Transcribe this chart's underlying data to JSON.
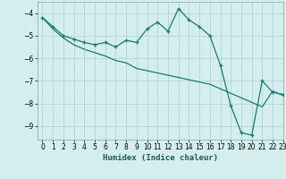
{
  "xlabel": "Humidex (Indice chaleur)",
  "bg_color": "#d4eeee",
  "grid_color": "#b8d8d8",
  "line_color": "#1a7a6e",
  "xlim": [
    -0.5,
    23
  ],
  "ylim": [
    -9.6,
    -3.5
  ],
  "yticks": [
    -9,
    -8,
    -7,
    -6,
    -5,
    -4
  ],
  "xticks": [
    0,
    1,
    2,
    3,
    4,
    5,
    6,
    7,
    8,
    9,
    10,
    11,
    12,
    13,
    14,
    15,
    16,
    17,
    18,
    19,
    20,
    21,
    22,
    23
  ],
  "series1_x": [
    0,
    1,
    2,
    3,
    4,
    5,
    6,
    7,
    8,
    9,
    10,
    11,
    12,
    13,
    14,
    15,
    16,
    17,
    18,
    19,
    20,
    21,
    22,
    23
  ],
  "series1_y": [
    -4.2,
    -4.6,
    -5.0,
    -5.15,
    -5.3,
    -5.4,
    -5.3,
    -5.5,
    -5.2,
    -5.3,
    -4.7,
    -4.4,
    -4.8,
    -3.8,
    -4.3,
    -4.6,
    -5.0,
    -6.3,
    -8.1,
    -9.3,
    -9.4,
    -7.0,
    -7.5,
    -7.6
  ],
  "series2_x": [
    0,
    1,
    2,
    3,
    4,
    5,
    6,
    7,
    8,
    9,
    10,
    11,
    12,
    13,
    14,
    15,
    16,
    17,
    18,
    19,
    20,
    21,
    22,
    23
  ],
  "series2_y": [
    -4.2,
    -4.7,
    -5.1,
    -5.4,
    -5.6,
    -5.75,
    -5.9,
    -6.1,
    -6.2,
    -6.45,
    -6.55,
    -6.65,
    -6.75,
    -6.85,
    -6.95,
    -7.05,
    -7.15,
    -7.35,
    -7.55,
    -7.75,
    -7.95,
    -8.15,
    -7.45,
    -7.65
  ]
}
